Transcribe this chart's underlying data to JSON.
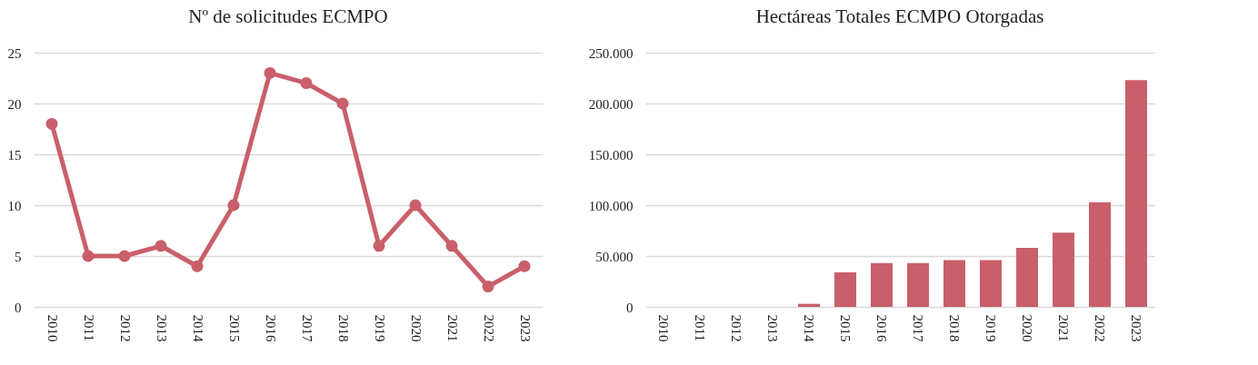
{
  "chart_data": [
    {
      "type": "line",
      "title": "Nº de solicitudes ECMPO",
      "categories": [
        "2010",
        "2011",
        "2012",
        "2013",
        "2014",
        "2015",
        "2016",
        "2017",
        "2018",
        "2019",
        "2020",
        "2021",
        "2022",
        "2023"
      ],
      "values": [
        18,
        5,
        5,
        6,
        4,
        10,
        23,
        22,
        20,
        6,
        10,
        6,
        2,
        4
      ],
      "color": "#c95f6b",
      "ylim": [
        0,
        25
      ],
      "yticks": [
        0,
        5,
        10,
        15,
        20,
        25
      ],
      "grid": "y",
      "marker": "circle",
      "line_style": "solid"
    },
    {
      "type": "bar",
      "title": "Hectáreas Totales ECMPO Otorgadas",
      "categories": [
        "2010",
        "2011",
        "2012",
        "2013",
        "2014",
        "2015",
        "2016",
        "2017",
        "2018",
        "2019",
        "2020",
        "2021",
        "2022",
        "2023"
      ],
      "values": [
        0,
        0,
        0,
        0,
        3000,
        34000,
        43000,
        43000,
        46000,
        46000,
        58000,
        73000,
        103000,
        223000
      ],
      "color": "#c95f6b",
      "ylim": [
        0,
        250000
      ],
      "yticks": [
        0,
        {
          "value": 50000,
          "label": "50.000"
        },
        {
          "value": 100000,
          "label": "100.000"
        },
        {
          "value": 150000,
          "label": "150.000"
        },
        {
          "value": 200000,
          "label": "200.000"
        },
        {
          "value": 250000,
          "label": "250.000"
        }
      ],
      "grid": "y"
    }
  ]
}
